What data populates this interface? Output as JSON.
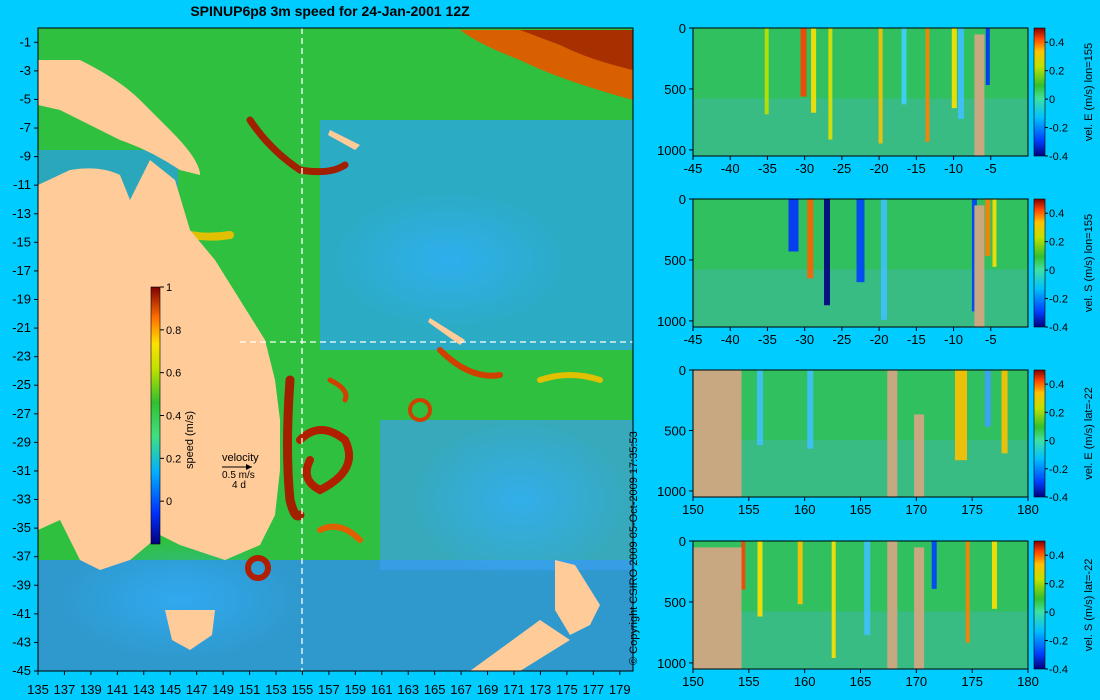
{
  "page": {
    "title": "SPINUP6p8 3m speed for 24-Jan-2001 12Z",
    "copyright": "© Copyright CSIRO 2009   05-Oct-2009 17:35:53"
  },
  "colors": {
    "background": "#00ccff",
    "land": "#ffcc99",
    "seafloor": "#c8a880",
    "section_line": "#ffffff"
  },
  "chart_data": [
    {
      "type": "heatmap",
      "title": "SPINUP6p8 3m speed for 24-Jan-2001 12Z",
      "x_ticks": [
        135,
        137,
        139,
        141,
        143,
        145,
        147,
        149,
        151,
        153,
        155,
        157,
        159,
        161,
        163,
        165,
        167,
        169,
        171,
        173,
        175,
        177,
        179
      ],
      "y_ticks": [
        -1,
        -3,
        -5,
        -7,
        -9,
        -11,
        -13,
        -15,
        -17,
        -19,
        -21,
        -23,
        -25,
        -27,
        -29,
        -31,
        -33,
        -35,
        -37,
        -39,
        -41,
        -43,
        -45
      ],
      "xlim": [
        135,
        180
      ],
      "ylim": [
        -45,
        0
      ],
      "colorbar": {
        "label": "speed (m/s)",
        "range": [
          -0.2,
          1
        ],
        "ticks": [
          0,
          0.2,
          0.4,
          0.6,
          0.8,
          1
        ],
        "tick_labels": [
          "0",
          "0.2",
          "0.4",
          "0.6",
          "0.8",
          "1"
        ]
      },
      "velocity_key": {
        "label": "velocity",
        "speed": "0.5 m/s",
        "duration": "4 d"
      },
      "section_lines": {
        "lon": 155,
        "lat": -22
      }
    },
    {
      "type": "heatmap",
      "ylabel": "vel. E (m/s) lon=155",
      "x_ticks": [
        -45,
        -40,
        -35,
        -30,
        -25,
        -20,
        -15,
        -10,
        -5
      ],
      "y_ticks": [
        0,
        500,
        1000
      ],
      "xlim": [
        -45,
        0
      ],
      "ylim": [
        1050,
        0
      ],
      "colorbar": {
        "range": [
          -0.4,
          0.5
        ],
        "ticks": [
          0.4,
          0.2,
          0,
          -0.2,
          -0.4
        ],
        "tick_labels": [
          "0.4",
          "0.2",
          "0",
          "-0.2",
          "-0.4"
        ]
      }
    },
    {
      "type": "heatmap",
      "ylabel": "vel. S (m/s) lon=155",
      "x_ticks": [
        -45,
        -40,
        -35,
        -30,
        -25,
        -20,
        -15,
        -10,
        -5
      ],
      "y_ticks": [
        0,
        500,
        1000
      ],
      "xlim": [
        -45,
        0
      ],
      "ylim": [
        1050,
        0
      ],
      "colorbar": {
        "range": [
          -0.4,
          0.5
        ],
        "ticks": [
          0.4,
          0.2,
          0,
          -0.2,
          -0.4
        ],
        "tick_labels": [
          "0.4",
          "0.2",
          "0",
          "-0.2",
          "-0.4"
        ]
      }
    },
    {
      "type": "heatmap",
      "ylabel": "vel. E (m/s) lat=-22",
      "x_ticks": [
        150,
        155,
        160,
        165,
        170,
        175,
        180
      ],
      "y_ticks": [
        0,
        500,
        1000
      ],
      "xlim": [
        150,
        180
      ],
      "ylim": [
        1050,
        0
      ],
      "colorbar": {
        "range": [
          -0.4,
          0.5
        ],
        "ticks": [
          0.4,
          0.2,
          0,
          -0.2,
          -0.4
        ],
        "tick_labels": [
          "0.4",
          "0.2",
          "0",
          "-0.2",
          "-0.4"
        ]
      }
    },
    {
      "type": "heatmap",
      "ylabel": "vel. S (m/s) lat=-22",
      "x_ticks": [
        150,
        155,
        160,
        165,
        170,
        175,
        180
      ],
      "y_ticks": [
        0,
        500,
        1000
      ],
      "xlim": [
        150,
        180
      ],
      "ylim": [
        1050,
        0
      ],
      "colorbar": {
        "range": [
          -0.4,
          0.5
        ],
        "ticks": [
          0.4,
          0.2,
          0,
          -0.2,
          -0.4
        ],
        "tick_labels": [
          "0.4",
          "0.2",
          "0",
          "-0.2",
          "-0.4"
        ]
      }
    }
  ]
}
